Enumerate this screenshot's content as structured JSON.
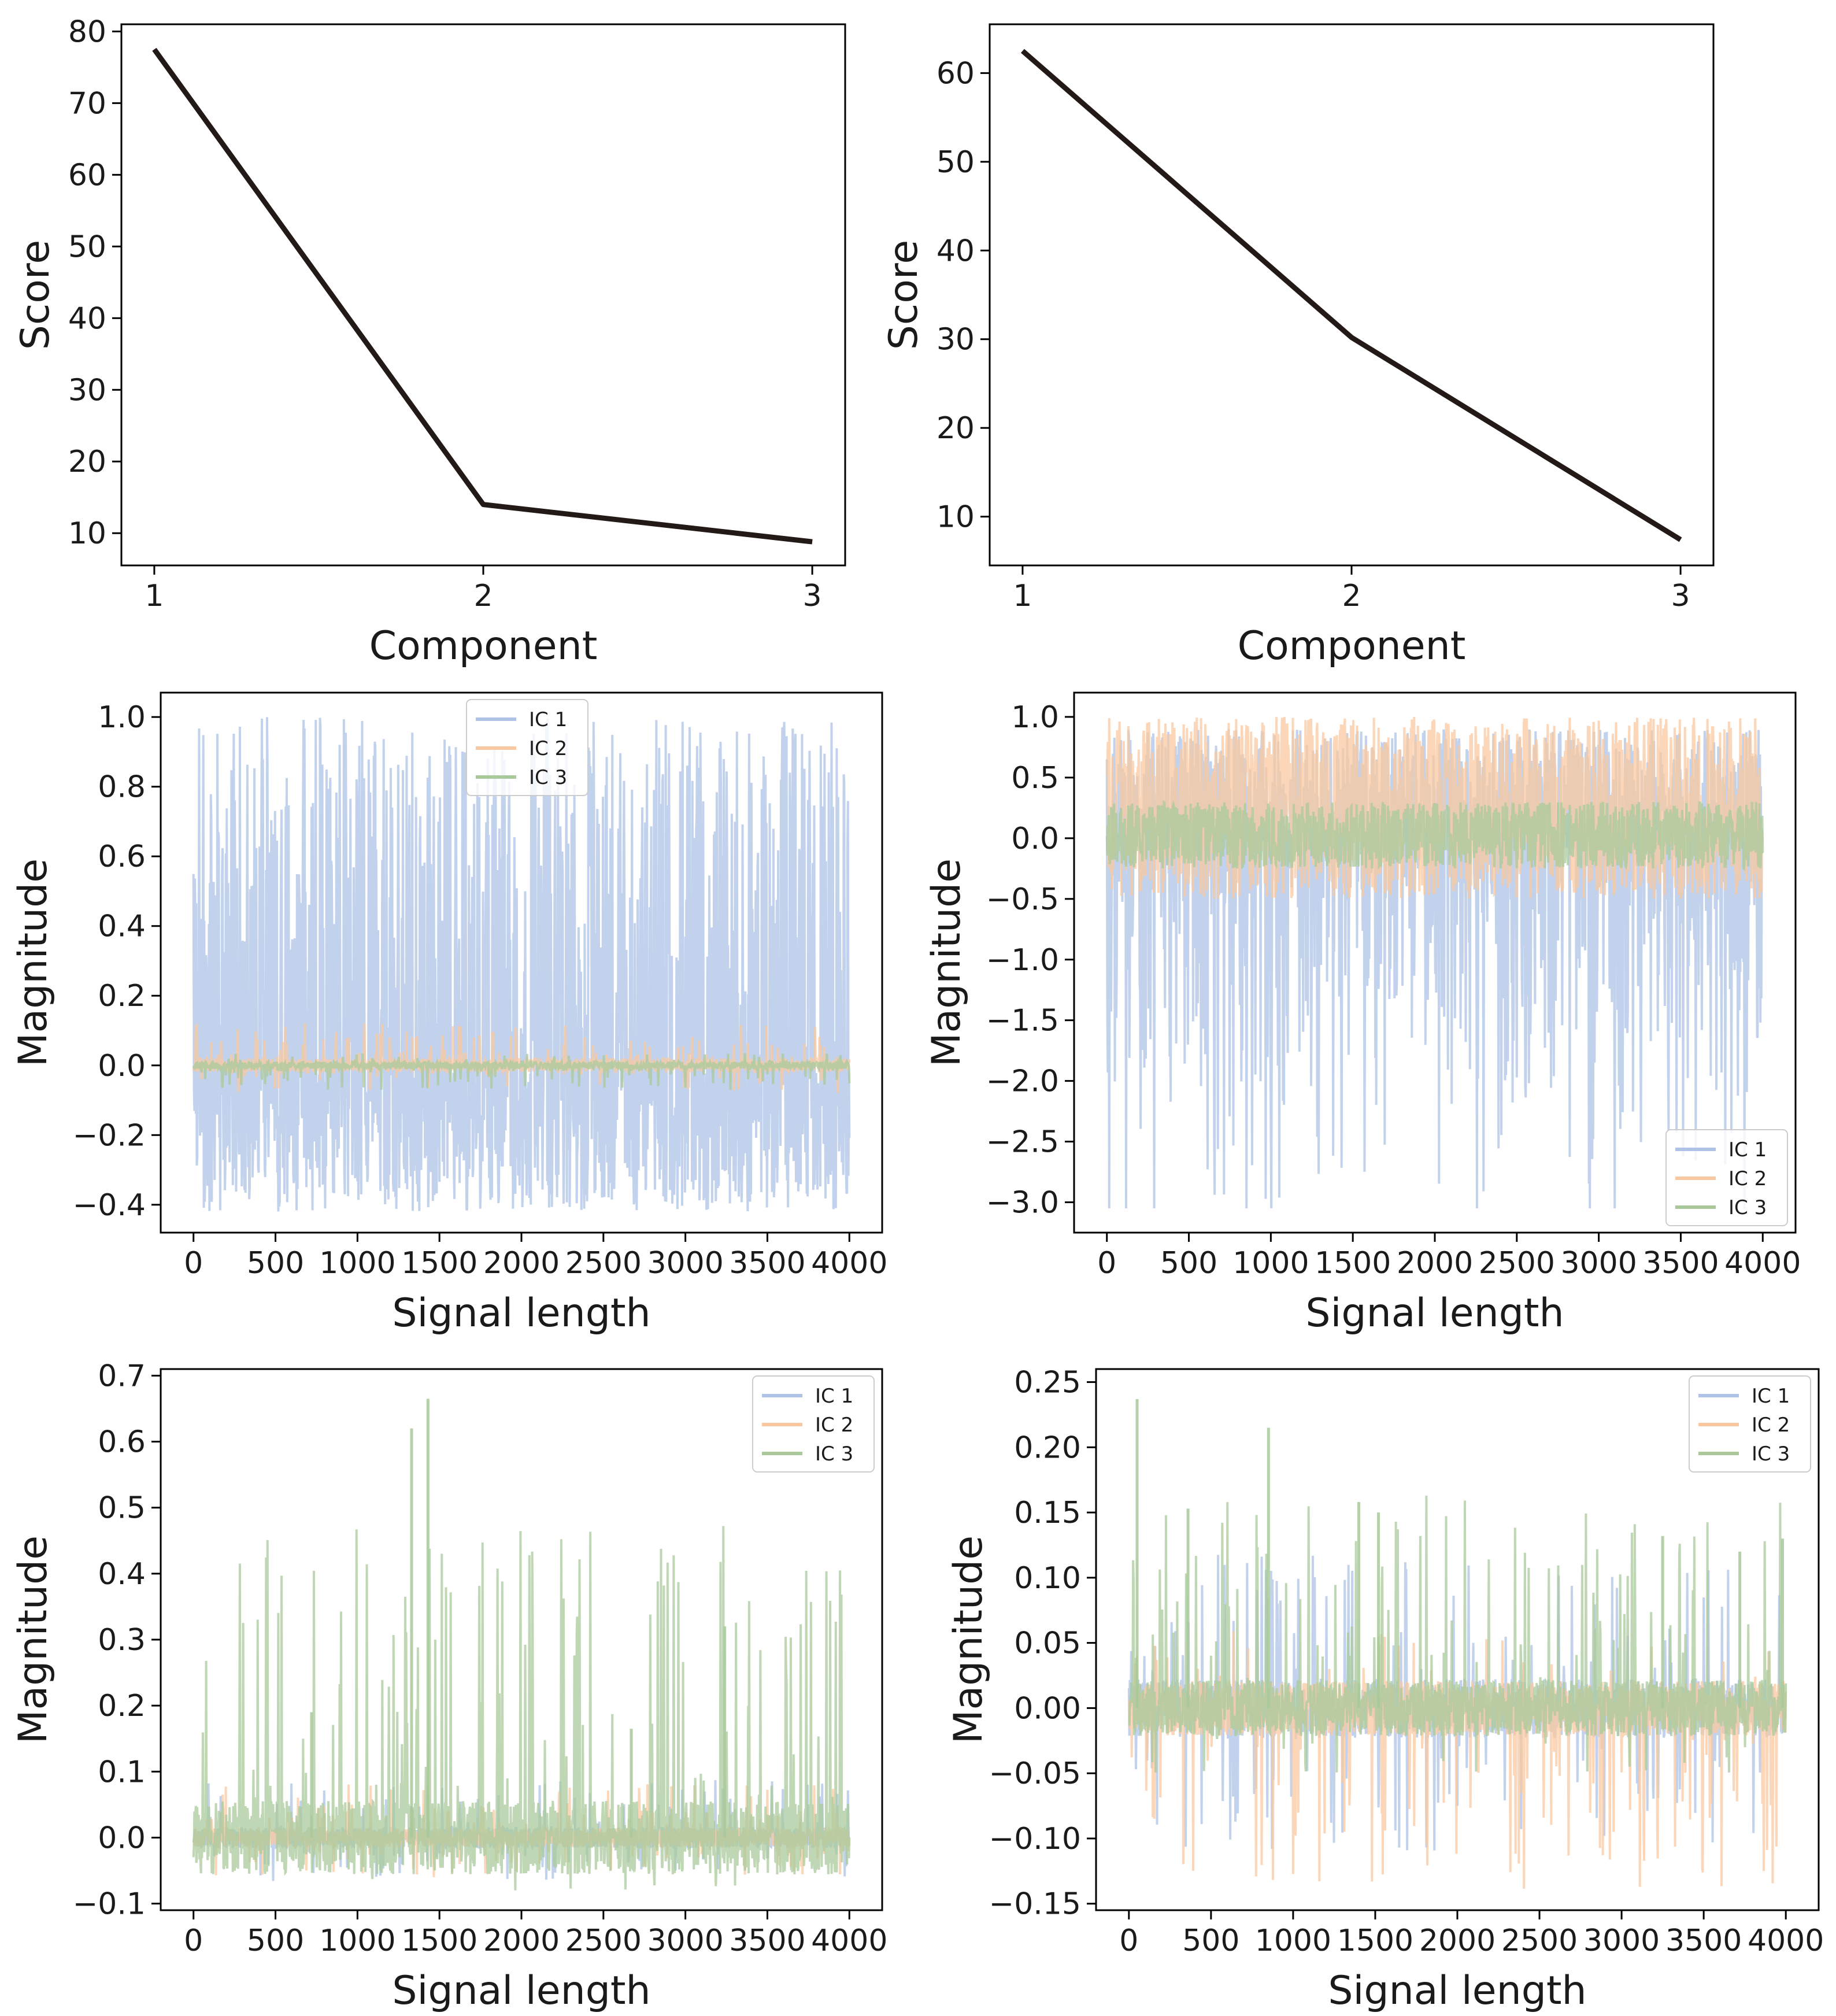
{
  "chart_data": [
    {
      "type": "line",
      "xlabel": "Component",
      "ylabel": "Score",
      "x": [
        1,
        2,
        3
      ],
      "xlim": [
        0.9,
        3.1
      ],
      "ylim": [
        5.5,
        81
      ],
      "xticks": [
        "1",
        "2",
        "3"
      ],
      "yticks": [
        10,
        20,
        30,
        40,
        50,
        60,
        70,
        80
      ],
      "series": [
        {
          "values": [
            77.5,
            14.0,
            8.8
          ],
          "color": "#231916"
        }
      ],
      "grid": false
    },
    {
      "type": "line",
      "xlabel": "Component",
      "ylabel": "Score",
      "x": [
        1,
        2,
        3
      ],
      "xlim": [
        0.9,
        3.1
      ],
      "ylim": [
        4.5,
        65.5
      ],
      "xticks": [
        "1",
        "2",
        "3"
      ],
      "yticks": [
        10,
        20,
        30,
        40,
        50,
        60
      ],
      "series": [
        {
          "values": [
            62.5,
            30.2,
            7.4
          ],
          "color": "#231916"
        }
      ],
      "grid": false
    },
    {
      "type": "line",
      "xlabel": "Signal length",
      "ylabel": "Magnitude",
      "xlim": [
        -200,
        4200
      ],
      "ylim": [
        -0.48,
        1.07
      ],
      "xticks": [
        0,
        500,
        1000,
        1500,
        2000,
        2500,
        3000,
        3500,
        4000
      ],
      "yticks": [
        "−0.4",
        "−0.2",
        "0.0",
        "0.2",
        "0.4",
        "0.6",
        "0.8",
        "1.0"
      ],
      "ytick_values": [
        -0.4,
        -0.2,
        0.0,
        0.2,
        0.4,
        0.6,
        0.8,
        1.0
      ],
      "legend": {
        "position": "top-center",
        "entries": [
          "IC 1",
          "IC 2",
          "IC 3"
        ]
      },
      "series": [
        {
          "name": "IC 1",
          "color": "#aec3e6",
          "range": [
            -0.42,
            1.0
          ]
        },
        {
          "name": "IC 2",
          "color": "#f9c8a0",
          "range": [
            -0.08,
            0.19
          ]
        },
        {
          "name": "IC 3",
          "color": "#a9c99b",
          "range": [
            -0.07,
            0.07
          ]
        }
      ],
      "grid": false
    },
    {
      "type": "line",
      "xlabel": "Signal length",
      "ylabel": "Magnitude",
      "xlim": [
        -200,
        4200
      ],
      "ylim": [
        -3.25,
        1.2
      ],
      "xticks": [
        0,
        500,
        1000,
        1500,
        2000,
        2500,
        3000,
        3500,
        4000
      ],
      "yticks": [
        "−3.0",
        "−2.5",
        "−2.0",
        "−1.5",
        "−1.0",
        "−0.5",
        "0.0",
        "0.5",
        "1.0"
      ],
      "ytick_values": [
        -3.0,
        -2.5,
        -2.0,
        -1.5,
        -1.0,
        -0.5,
        0.0,
        0.5,
        1.0
      ],
      "legend": {
        "position": "lower-right",
        "entries": [
          "IC 1",
          "IC 2",
          "IC 3"
        ]
      },
      "series": [
        {
          "name": "IC 1",
          "color": "#aec3e6",
          "range": [
            -3.05,
            0.9
          ]
        },
        {
          "name": "IC 2",
          "color": "#f9c8a0",
          "range": [
            -0.5,
            1.0
          ]
        },
        {
          "name": "IC 3",
          "color": "#a9c99b",
          "range": [
            -0.25,
            0.3
          ]
        }
      ],
      "grid": false
    },
    {
      "type": "line",
      "xlabel": "Signal length",
      "ylabel": "Magnitude",
      "xlim": [
        -200,
        4200
      ],
      "ylim": [
        -0.11,
        0.71
      ],
      "xticks": [
        0,
        500,
        1000,
        1500,
        2000,
        2500,
        3000,
        3500,
        4000
      ],
      "yticks": [
        "−0.1",
        "0.0",
        "0.1",
        "0.2",
        "0.3",
        "0.4",
        "0.5",
        "0.6",
        "0.7"
      ],
      "ytick_values": [
        -0.1,
        0.0,
        0.1,
        0.2,
        0.3,
        0.4,
        0.5,
        0.6,
        0.7
      ],
      "legend": {
        "position": "upper-right",
        "entries": [
          "IC 1",
          "IC 2",
          "IC 3"
        ]
      },
      "series": [
        {
          "name": "IC 1",
          "color": "#aec3e6",
          "range": [
            -0.07,
            0.14
          ]
        },
        {
          "name": "IC 2",
          "color": "#f9c8a0",
          "range": [
            -0.06,
            0.13
          ]
        },
        {
          "name": "IC 3",
          "color": "#a9c99b",
          "range": [
            -0.08,
            0.665
          ],
          "spikes": [
            [
              720,
              0.19
            ],
            [
              1330,
              0.62
            ],
            [
              1430,
              0.665
            ],
            [
              2670,
              0.165
            ],
            [
              3240,
              0.32
            ]
          ]
        }
      ],
      "grid": false
    },
    {
      "type": "line",
      "xlabel": "Signal length",
      "ylabel": "Magnitude",
      "xlim": [
        -200,
        4200
      ],
      "ylim": [
        -0.155,
        0.26
      ],
      "xticks": [
        0,
        500,
        1000,
        1500,
        2000,
        2500,
        3000,
        3500,
        4000
      ],
      "yticks": [
        "−0.15",
        "−0.10",
        "−0.05",
        "0.00",
        "0.05",
        "0.10",
        "0.15",
        "0.20",
        "0.25"
      ],
      "ytick_values": [
        -0.15,
        -0.1,
        -0.05,
        0.0,
        0.05,
        0.1,
        0.15,
        0.2,
        0.25
      ],
      "legend": {
        "position": "upper-right",
        "entries": [
          "IC 1",
          "IC 2",
          "IC 3"
        ]
      },
      "series": [
        {
          "name": "IC 1",
          "color": "#aec3e6",
          "range": [
            -0.11,
            0.195
          ]
        },
        {
          "name": "IC 2",
          "color": "#f9c8a0",
          "range": [
            -0.14,
            0.14
          ]
        },
        {
          "name": "IC 3",
          "color": "#a9c99b",
          "range": [
            -0.05,
            0.237
          ],
          "spikes": [
            [
              50,
              0.237
            ],
            [
              360,
              0.153
            ],
            [
              850,
              0.215
            ],
            [
              1400,
              0.158
            ],
            [
              1520,
              0.15
            ],
            [
              3250,
              0.132
            ],
            [
              3720,
              0.12
            ],
            [
              3980,
              0.13
            ]
          ]
        }
      ],
      "grid": false
    }
  ]
}
